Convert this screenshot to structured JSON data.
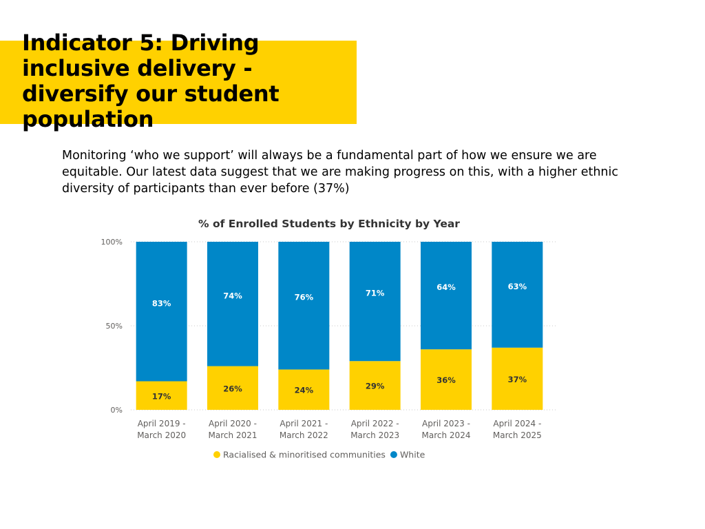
{
  "slide": {
    "title": "Indicator 5: Driving inclusive delivery - diversify our student population",
    "body": "Monitoring ‘who we support’ will always be a fundamental part of how we ensure we are equitable. Our latest data suggest that we are making progress on this, with a higher ethnic diversity of participants than ever before (37%)",
    "accent_color": "#FFD100"
  },
  "chart_data": {
    "type": "bar",
    "stacked": true,
    "title": "% of Enrolled Students by Ethnicity by Year",
    "categories": [
      [
        "April 2019 -",
        "March 2020"
      ],
      [
        "April 2020 -",
        "March 2021"
      ],
      [
        "April 2021 -",
        "March 2022"
      ],
      [
        "April 2022 -",
        "March 2023"
      ],
      [
        "April 2023 -",
        "March 2024"
      ],
      [
        "April 2024 -",
        "March 2025"
      ]
    ],
    "series": [
      {
        "name": "Racialised & minoritised communities",
        "color": "#FFD100",
        "values": [
          17,
          26,
          24,
          29,
          36,
          37
        ]
      },
      {
        "name": "White",
        "color": "#0087C8",
        "values": [
          83,
          74,
          76,
          71,
          64,
          63
        ]
      }
    ],
    "ylim": [
      0,
      100
    ],
    "yticks": [
      "0%",
      "50%",
      "100%"
    ],
    "ytick_values": [
      0,
      50,
      100
    ],
    "grid": true,
    "legend": "bottom"
  }
}
